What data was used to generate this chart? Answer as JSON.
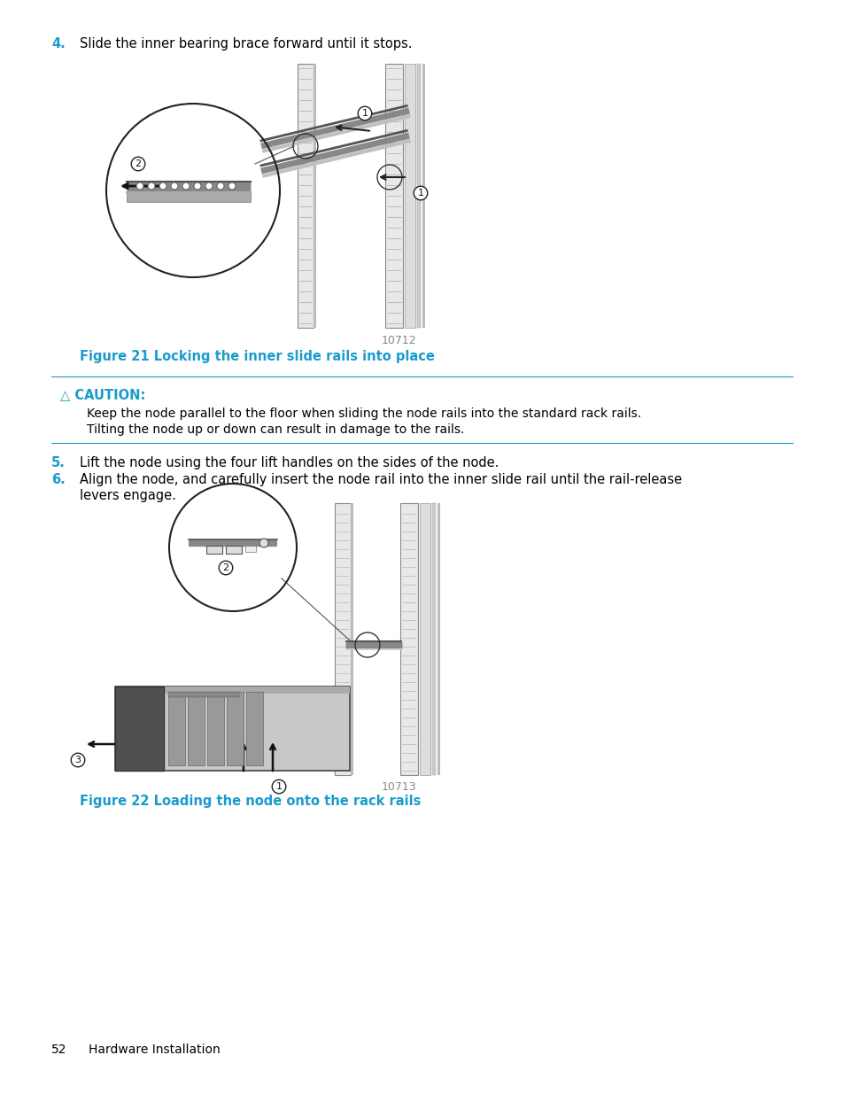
{
  "bg_color": "#ffffff",
  "text_color": "#000000",
  "blue_color": "#1a9bcc",
  "step4_num": "4.",
  "step4_text": "Slide the inner bearing brace forward until it stops.",
  "fig21_num": "10712",
  "fig21_caption": "Figure 21 Locking the inner slide rails into place",
  "caution_label": "△ CAUTION:",
  "caution_text_line1": "Keep the node parallel to the floor when sliding the node rails into the standard rack rails.",
  "caution_text_line2": "Tilting the node up or down can result in damage to the rails.",
  "step5_num": "5.",
  "step5_text": "Lift the node using the four lift handles on the sides of the node.",
  "step6_num": "6.",
  "step6_text_line1": "Align the node, and carefully insert the node rail into the inner slide rail until the rail-release",
  "step6_text_line2": "levers engage.",
  "fig22_num": "10713",
  "fig22_caption": "Figure 22 Loading the node onto the rack rails",
  "footer_page": "52",
  "footer_section": "Hardware Installation",
  "font_size_body": 10.5,
  "font_size_caption": 10.5,
  "font_size_footer": 10.0,
  "font_size_caution": 10.5,
  "font_size_num": 9.0,
  "line_color": "#1a9bcc"
}
